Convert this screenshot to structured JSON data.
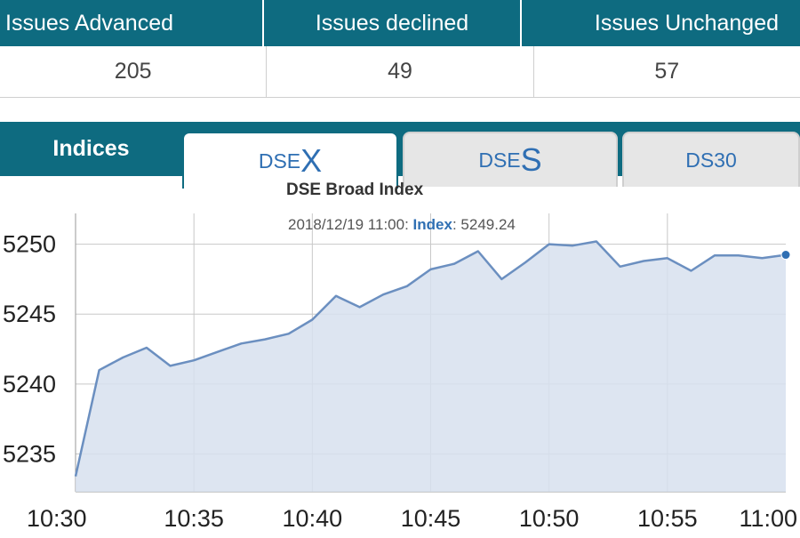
{
  "stats": {
    "headers": [
      "Issues Advanced",
      "Issues declined",
      "Issues Unchanged"
    ],
    "values": [
      "205",
      "49",
      "57"
    ]
  },
  "indices": {
    "label": "Indices",
    "tabs": [
      {
        "prefix": "DSE",
        "suffix": "X",
        "active": true
      },
      {
        "prefix": "DSE",
        "suffix": "S",
        "active": false
      },
      {
        "prefix": "DS30",
        "suffix": "",
        "active": false
      }
    ]
  },
  "tooltip": {
    "time": "2018/12/19 11:00",
    "series": "Index",
    "value": "5249.24"
  },
  "colors": {
    "brand": "#0e6b80",
    "line": "#6b8fc0",
    "fill": "#d7e1ee",
    "accent_text": "#2f6fb3"
  },
  "chart_data": {
    "type": "area",
    "title": "DSE Broad Index",
    "xlabel": "",
    "ylabel": "",
    "x_ticks": [
      "10:30",
      "10:35",
      "10:40",
      "10:45",
      "10:50",
      "10:55",
      "11:00"
    ],
    "y_ticks": [
      5235,
      5240,
      5245,
      5250
    ],
    "ylim": [
      5232.3,
      5252.2
    ],
    "grid": true,
    "series": [
      {
        "name": "Index",
        "x": [
          "10:30",
          "10:31",
          "10:32",
          "10:33",
          "10:34",
          "10:35",
          "10:36",
          "10:37",
          "10:38",
          "10:39",
          "10:40",
          "10:41",
          "10:42",
          "10:43",
          "10:44",
          "10:45",
          "10:46",
          "10:47",
          "10:48",
          "10:49",
          "10:50",
          "10:51",
          "10:52",
          "10:53",
          "10:54",
          "10:55",
          "10:56",
          "10:57",
          "10:58",
          "10:59",
          "11:00"
        ],
        "values": [
          5233.4,
          5241.0,
          5241.9,
          5242.6,
          5241.3,
          5241.7,
          5242.3,
          5242.9,
          5243.2,
          5243.6,
          5244.6,
          5246.3,
          5245.5,
          5246.4,
          5247.0,
          5248.2,
          5248.6,
          5249.5,
          5247.5,
          5248.7,
          5250.0,
          5249.9,
          5250.2,
          5248.4,
          5248.8,
          5249.0,
          5248.1,
          5249.2,
          5249.2,
          5249.0,
          5249.24
        ]
      }
    ]
  }
}
